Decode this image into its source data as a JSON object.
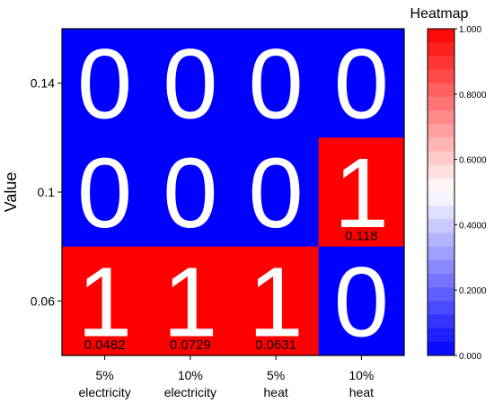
{
  "chart_data": {
    "type": "heatmap",
    "ylabel": "Value",
    "xlabel": "",
    "x_categories": [
      [
        "5%",
        "electricity"
      ],
      [
        "10%",
        "electricity"
      ],
      [
        "5%",
        "heat"
      ],
      [
        "10%",
        "heat"
      ]
    ],
    "y_categories": [
      "0.14",
      "0.1",
      "0.06"
    ],
    "cells": [
      {
        "row": 0,
        "col": 0,
        "value": 0,
        "label": "0",
        "sub": ""
      },
      {
        "row": 0,
        "col": 1,
        "value": 0,
        "label": "0",
        "sub": ""
      },
      {
        "row": 0,
        "col": 2,
        "value": 0,
        "label": "0",
        "sub": ""
      },
      {
        "row": 0,
        "col": 3,
        "value": 0,
        "label": "0",
        "sub": ""
      },
      {
        "row": 1,
        "col": 0,
        "value": 0,
        "label": "0",
        "sub": ""
      },
      {
        "row": 1,
        "col": 1,
        "value": 0,
        "label": "0",
        "sub": ""
      },
      {
        "row": 1,
        "col": 2,
        "value": 0,
        "label": "0",
        "sub": ""
      },
      {
        "row": 1,
        "col": 3,
        "value": 1,
        "label": "1",
        "sub": "0.118"
      },
      {
        "row": 2,
        "col": 0,
        "value": 1,
        "label": "1",
        "sub": "0.0482"
      },
      {
        "row": 2,
        "col": 1,
        "value": 1,
        "label": "1",
        "sub": "0.0729"
      },
      {
        "row": 2,
        "col": 2,
        "value": 1,
        "label": "1",
        "sub": "0.0631"
      },
      {
        "row": 2,
        "col": 3,
        "value": 0,
        "label": "0",
        "sub": ""
      }
    ],
    "colorbar": {
      "title": "Heatmap",
      "ticks": [
        "1.000",
        "0.8000",
        "0.6000",
        "0.4000",
        "0.2000",
        "0.000"
      ],
      "range": [
        0,
        1
      ],
      "color_low": "#0000ff",
      "color_mid": "#ffffff",
      "color_high": "#ff0000"
    }
  }
}
